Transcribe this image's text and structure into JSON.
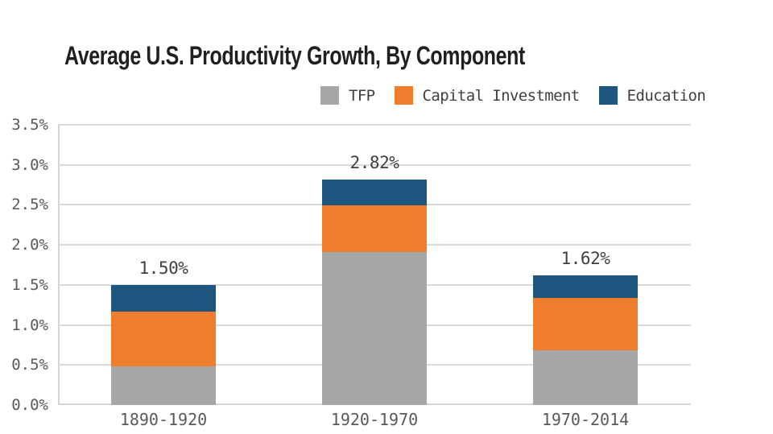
{
  "title": "Average U.S. Productivity Growth, By Component",
  "colors": {
    "background": "#FFFFFF",
    "title": "#221F1F",
    "grid": "#DADADA",
    "axis_line": "#D4D4D4",
    "tick_label": "#595959",
    "value_label": "#3F3F3F",
    "tfp": "#A7A7A7",
    "capital_investment": "#EE7E2D",
    "education": "#1F567F"
  },
  "legend": [
    {
      "label": "TFP",
      "color": "#A7A7A7",
      "icon": "legend-swatch-tfp"
    },
    {
      "label": "Capital Investment",
      "color": "#EE7E2D",
      "icon": "legend-swatch-capital-investment"
    },
    {
      "label": "Education",
      "color": "#1F567F",
      "icon": "legend-swatch-education"
    }
  ],
  "chart_data": {
    "type": "bar",
    "stacked": true,
    "title": "Average U.S. Productivity Growth, By Component",
    "xlabel": "",
    "ylabel": "",
    "categories": [
      "1890-1920",
      "1920-1970",
      "1970-2014"
    ],
    "series": [
      {
        "name": "TFP",
        "color": "#A7A7A7",
        "values": [
          0.48,
          1.91,
          0.68
        ]
      },
      {
        "name": "Capital Investment",
        "color": "#EE7E2D",
        "values": [
          0.69,
          0.58,
          0.66
        ]
      },
      {
        "name": "Education",
        "color": "#1F567F",
        "values": [
          0.33,
          0.33,
          0.28
        ]
      }
    ],
    "totals": [
      1.5,
      2.82,
      1.62
    ],
    "totals_labels": [
      "1.50%",
      "2.82%",
      "1.62%"
    ],
    "ylim": [
      0,
      3.5
    ],
    "ytick_step": 0.5,
    "ytick_labels": [
      "0.0%",
      "0.5%",
      "1.0%",
      "1.5%",
      "2.0%",
      "2.5%",
      "3.0%",
      "3.5%"
    ],
    "grid": true,
    "legend_position": "top-right"
  }
}
